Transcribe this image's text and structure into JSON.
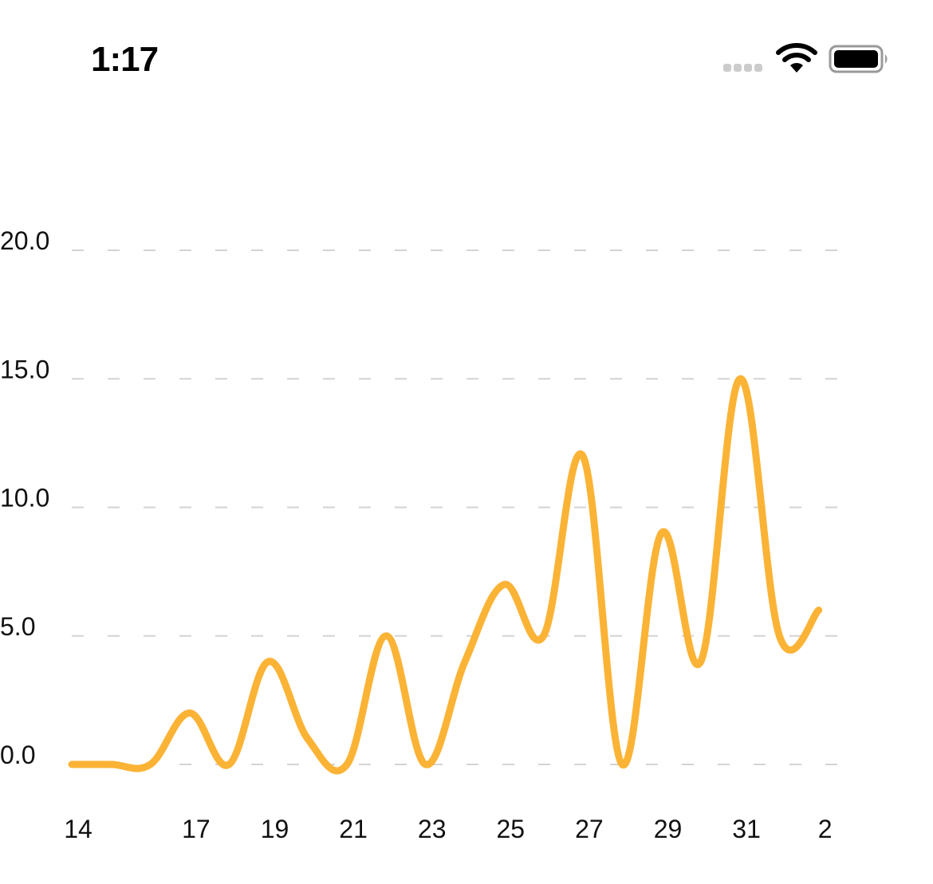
{
  "status_bar": {
    "time": "1:17",
    "icons": [
      "cellular-signal-icon",
      "wifi-icon",
      "battery-icon"
    ]
  },
  "chart_data": {
    "type": "line",
    "x_tick_labels": [
      "14",
      "17",
      "19",
      "21",
      "23",
      "25",
      "27",
      "29",
      "31",
      "2"
    ],
    "x": [
      "14",
      "15",
      "16",
      "17",
      "18",
      "19",
      "20",
      "21",
      "22",
      "23",
      "24",
      "25",
      "26",
      "27",
      "28",
      "29",
      "30",
      "31",
      "1",
      "2"
    ],
    "y_tick_labels": [
      "0.0",
      "5.0",
      "10.0",
      "15.0",
      "20.0"
    ],
    "ylim": [
      0,
      20
    ],
    "series": [
      {
        "values": [
          0,
          0,
          0,
          2,
          0,
          4,
          1,
          0,
          5,
          0,
          4,
          7,
          5,
          12,
          0,
          9,
          4,
          15,
          5,
          6
        ],
        "color": "#fbb336"
      }
    ],
    "grid": true,
    "grid_style": "dashed horizontal",
    "gridline_color": "#d3d3d3"
  }
}
